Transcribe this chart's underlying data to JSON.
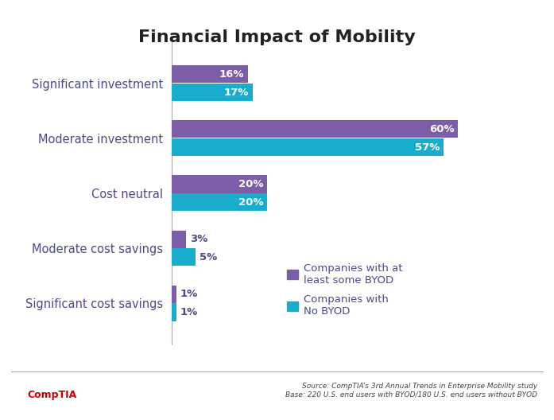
{
  "title": "Financial Impact of Mobility",
  "categories": [
    "Significant investment",
    "Moderate investment",
    "Cost neutral",
    "Moderate cost savings",
    "Significant cost savings"
  ],
  "byod_values": [
    16,
    60,
    20,
    3,
    1
  ],
  "no_byod_values": [
    17,
    57,
    20,
    5,
    1
  ],
  "byod_color": "#7B5EA7",
  "no_byod_color": "#1AACCD",
  "byod_label": "Companies with at\nleast some BYOD",
  "no_byod_label": "Companies with\nNo BYOD",
  "bar_height": 0.32,
  "xlim": [
    0,
    72
  ],
  "title_fontsize": 16,
  "label_fontsize": 10.5,
  "value_fontsize": 9.5,
  "footer_text_right": "Source: CompTIA’s 3rd Annual Trends in Enterprise Mobility study\nBase: 220 U.S. end users with BYOD/180 U.S. end users without BYOD",
  "footer_brand": "CompTIA",
  "background_color": "#ffffff",
  "border_color": "#aaaaaa",
  "text_color": "#4a4a8a",
  "inside_label_threshold": 8
}
